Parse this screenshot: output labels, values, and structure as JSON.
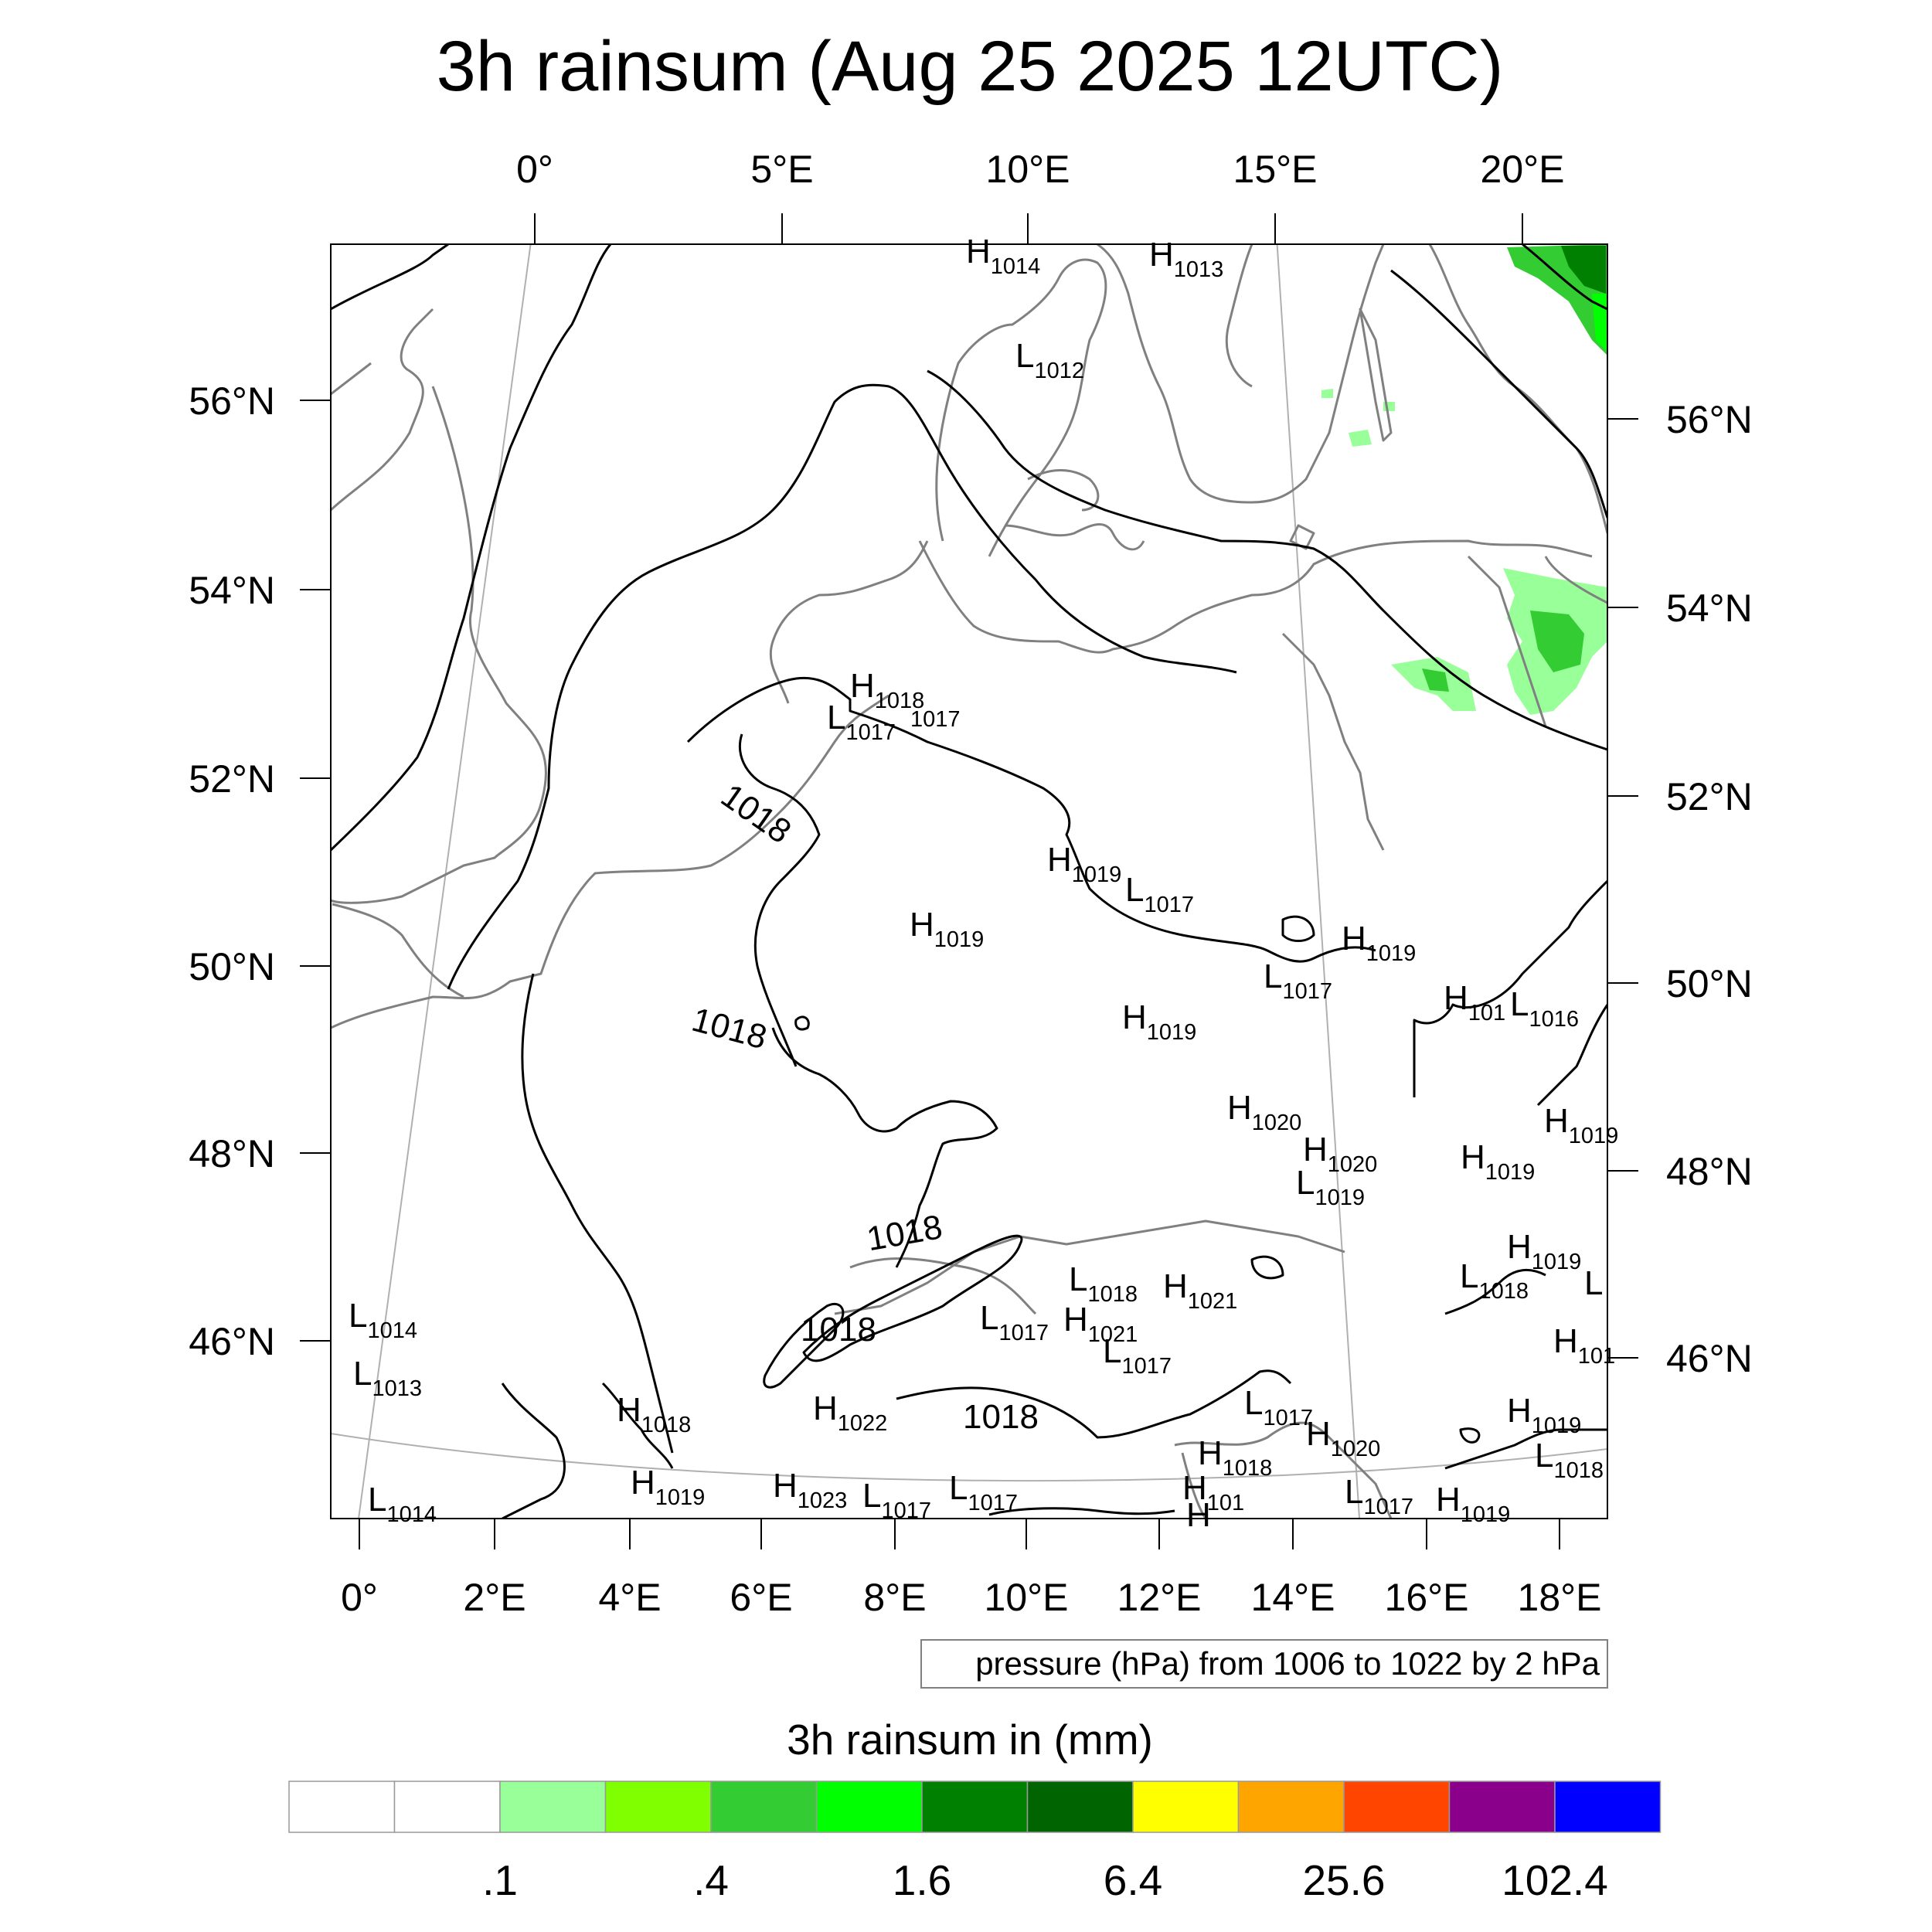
{
  "title": "3h rainsum (Aug 25 2025 12UTC)",
  "top_lon_labels": [
    "0°",
    "5°E",
    "10°E",
    "15°E",
    "20°E"
  ],
  "bottom_lon_labels": [
    "0°",
    "2°E",
    "4°E",
    "6°E",
    "8°E",
    "10°E",
    "12°E",
    "14°E",
    "16°E",
    "18°E"
  ],
  "left_lat_labels": [
    "56°N",
    "54°N",
    "52°N",
    "50°N",
    "48°N",
    "46°N"
  ],
  "right_lat_labels": [
    "56°N",
    "54°N",
    "52°N",
    "50°N",
    "48°N",
    "46°N"
  ],
  "contour_note": "pressure (hPa) from 1006 to 1022 by 2 hPa",
  "isobar_labels": [
    "1018",
    "1018",
    "1018",
    "1018",
    "1018"
  ],
  "pressure_centers": [
    {
      "type": "H",
      "value": "1014"
    },
    {
      "type": "H",
      "value": "1013"
    },
    {
      "type": "L",
      "value": "1012"
    },
    {
      "type": "H",
      "value": "1018"
    },
    {
      "type": "L",
      "value": "1017"
    },
    {
      "type": "",
      "value": "1017"
    },
    {
      "type": "H",
      "value": "1019"
    },
    {
      "type": "L",
      "value": "1017"
    },
    {
      "type": "H",
      "value": "1019"
    },
    {
      "type": "H",
      "value": "1019"
    },
    {
      "type": "L",
      "value": "1017"
    },
    {
      "type": "H",
      "value": "1019"
    },
    {
      "type": "H",
      "value": "101"
    },
    {
      "type": "L",
      "value": "1016"
    },
    {
      "type": "H",
      "value": "1020"
    },
    {
      "type": "H",
      "value": "1020"
    },
    {
      "type": "L",
      "value": "1019"
    },
    {
      "type": "H",
      "value": "1019"
    },
    {
      "type": "H",
      "value": "1019"
    },
    {
      "type": "H",
      "value": "101"
    },
    {
      "type": "H",
      "value": "1019"
    },
    {
      "type": "L",
      "value": "1018"
    },
    {
      "type": "L",
      "value": ""
    },
    {
      "type": "H",
      "value": "1021"
    },
    {
      "type": "L",
      "value": "1018"
    },
    {
      "type": "L",
      "value": "1017"
    },
    {
      "type": "H",
      "value": "1021"
    },
    {
      "type": "L",
      "value": "1017"
    },
    {
      "type": "L",
      "value": "1014"
    },
    {
      "type": "L",
      "value": "1013"
    },
    {
      "type": "H",
      "value": "101"
    },
    {
      "type": "H",
      "value": "1018"
    },
    {
      "type": "H",
      "value": "1022"
    },
    {
      "type": "L",
      "value": "1017"
    },
    {
      "type": "H",
      "value": "1020"
    },
    {
      "type": "H",
      "value": "1019"
    },
    {
      "type": "L",
      "value": "1018"
    },
    {
      "type": "H",
      "value": "1018"
    },
    {
      "type": "L",
      "value": "1014"
    },
    {
      "type": "H",
      "value": "1019"
    },
    {
      "type": "H",
      "value": "1023"
    },
    {
      "type": "L",
      "value": "1017"
    },
    {
      "type": "L",
      "value": "1017"
    },
    {
      "type": "L",
      "value": "1017"
    },
    {
      "type": "H",
      "value": "1019"
    },
    {
      "type": "H",
      "value": ""
    }
  ],
  "colorbar": {
    "title": "3h rainsum in (mm)",
    "colors": [
      "#ffffff",
      "#ffffff",
      "#99ff99",
      "#80ff00",
      "#33cc33",
      "#00ff00",
      "#008000",
      "#006400",
      "#ffff00",
      "#ffa500",
      "#ff4500",
      "#8b008b",
      "#0000ff"
    ],
    "labels": [
      ".1",
      ".4",
      "1.6",
      "6.4",
      "25.6",
      "102.4"
    ],
    "label_after_bin": [
      1,
      3,
      5,
      7,
      9,
      11
    ]
  },
  "colors": {
    "coastline": "#808080",
    "isobar": "#000000",
    "graticule": "#b0b0b0",
    "rain_light": "#99ff99",
    "rain_mid": "#33cc33",
    "rain_bright": "#00ff00",
    "rain_dark": "#008000"
  }
}
